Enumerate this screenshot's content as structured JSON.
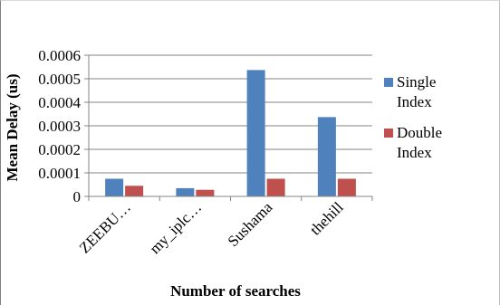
{
  "chart_data": {
    "type": "bar",
    "title": "",
    "xlabel": "Number of searches",
    "ylabel": "Mean Delay (us)",
    "categories": [
      "ZEEBU…",
      "my_iplc…",
      "Sushama",
      "thehill"
    ],
    "ylim": [
      0,
      0.0006
    ],
    "yticks": [
      "0",
      "0.0001",
      "0.0002",
      "0.0003",
      "0.0004",
      "0.0005",
      "0.0006"
    ],
    "grid": true,
    "legend_position": "right",
    "series": [
      {
        "name": "Single Index",
        "legend_lines": [
          "Single",
          "Index"
        ],
        "color": "#4f81bd",
        "values": [
          7.5e-05,
          3.5e-05,
          0.000537,
          0.000337
        ]
      },
      {
        "name": "Double Index",
        "legend_lines": [
          "Double",
          "Index"
        ],
        "color": "#c0504d",
        "values": [
          4.5e-05,
          2.8e-05,
          7.5e-05,
          7.5e-05
        ]
      }
    ]
  }
}
